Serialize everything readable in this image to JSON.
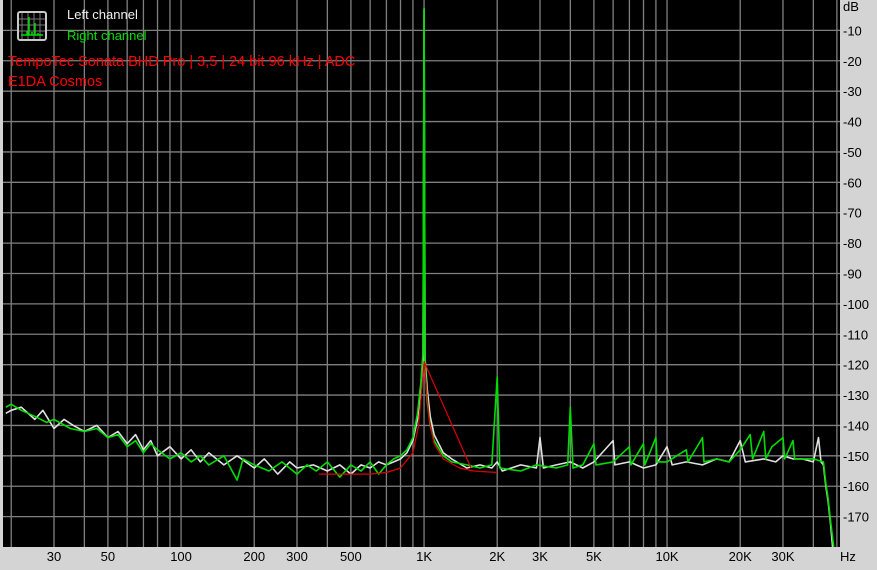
{
  "legend": {
    "left_label": "Left channel",
    "right_label": "Right channel",
    "icon": "spectrum-analyzer-icon"
  },
  "caption": {
    "line1": "TempoTec Sonata BHD Pro | 3,5 | 24 bit 96 kHz | ADC",
    "line2": "E1DA Cosmos"
  },
  "colors": {
    "background": "#000000",
    "grid": "#808080",
    "left": "#e0e0e0",
    "right": "#00dd00",
    "reference": "#dd0000",
    "caption": "#ff0000",
    "panel": "#d4d4d4"
  },
  "chart_data": {
    "type": "line",
    "xscale": "log",
    "xlim": [
      18.5,
      51500
    ],
    "ylim": [
      -180,
      0
    ],
    "xlabel": "Hz",
    "ylabel": "dB",
    "grid": true,
    "x_ticks": [
      {
        "value": 30,
        "label": "30"
      },
      {
        "value": 50,
        "label": "50"
      },
      {
        "value": 100,
        "label": "100"
      },
      {
        "value": 200,
        "label": "200"
      },
      {
        "value": 300,
        "label": "300"
      },
      {
        "value": 500,
        "label": "500"
      },
      {
        "value": 1000,
        "label": "1K"
      },
      {
        "value": 2000,
        "label": "2K"
      },
      {
        "value": 3000,
        "label": "3K"
      },
      {
        "value": 5000,
        "label": "5K"
      },
      {
        "value": 10000,
        "label": "10K"
      },
      {
        "value": 20000,
        "label": "20K"
      },
      {
        "value": 30000,
        "label": "30K"
      }
    ],
    "x_grid": [
      20,
      30,
      40,
      50,
      60,
      70,
      80,
      90,
      100,
      200,
      300,
      400,
      500,
      600,
      700,
      800,
      900,
      1000,
      2000,
      3000,
      4000,
      5000,
      6000,
      7000,
      8000,
      9000,
      10000,
      20000,
      30000,
      40000,
      50000
    ],
    "y_ticks": [
      -10,
      -20,
      -30,
      -40,
      -50,
      -60,
      -70,
      -80,
      -90,
      -100,
      -110,
      -120,
      -130,
      -140,
      -150,
      -160,
      -170
    ],
    "series": [
      {
        "name": "Left channel",
        "color": "#e0e0e0",
        "points": [
          [
            19,
            -136
          ],
          [
            20,
            -135
          ],
          [
            22,
            -134
          ],
          [
            25,
            -138
          ],
          [
            27,
            -135
          ],
          [
            30,
            -141
          ],
          [
            33,
            -138
          ],
          [
            36,
            -140
          ],
          [
            40,
            -142
          ],
          [
            45,
            -140
          ],
          [
            50,
            -144
          ],
          [
            55,
            -142
          ],
          [
            60,
            -146
          ],
          [
            65,
            -143
          ],
          [
            70,
            -148
          ],
          [
            75,
            -145
          ],
          [
            80,
            -150
          ],
          [
            90,
            -147
          ],
          [
            100,
            -151
          ],
          [
            110,
            -148
          ],
          [
            120,
            -152
          ],
          [
            130,
            -149
          ],
          [
            150,
            -153
          ],
          [
            170,
            -150
          ],
          [
            200,
            -154
          ],
          [
            220,
            -151
          ],
          [
            250,
            -156
          ],
          [
            280,
            -152
          ],
          [
            300,
            -154
          ],
          [
            350,
            -153
          ],
          [
            400,
            -155
          ],
          [
            450,
            -153
          ],
          [
            500,
            -156
          ],
          [
            550,
            -153
          ],
          [
            600,
            -154
          ],
          [
            650,
            -152
          ],
          [
            700,
            -153
          ],
          [
            750,
            -152
          ],
          [
            800,
            -151
          ],
          [
            850,
            -149
          ],
          [
            900,
            -145
          ],
          [
            940,
            -138
          ],
          [
            970,
            -128
          ],
          [
            990,
            -118
          ],
          [
            1000,
            -3
          ],
          [
            1010,
            -118
          ],
          [
            1030,
            -128
          ],
          [
            1060,
            -137
          ],
          [
            1100,
            -143
          ],
          [
            1200,
            -149
          ],
          [
            1300,
            -151
          ],
          [
            1500,
            -154
          ],
          [
            1700,
            -153
          ],
          [
            1900,
            -154
          ],
          [
            2000,
            -152
          ],
          [
            2100,
            -155
          ],
          [
            2500,
            -153
          ],
          [
            2900,
            -154
          ],
          [
            3000,
            -144
          ],
          [
            3100,
            -154
          ],
          [
            3500,
            -153
          ],
          [
            4000,
            -152
          ],
          [
            4500,
            -154
          ],
          [
            5000,
            -152
          ],
          [
            6000,
            -145
          ],
          [
            6100,
            -153
          ],
          [
            7000,
            -152
          ],
          [
            8000,
            -154
          ],
          [
            9000,
            -153
          ],
          [
            10000,
            -147
          ],
          [
            10500,
            -153
          ],
          [
            12000,
            -152
          ],
          [
            14000,
            -153
          ],
          [
            16000,
            -151
          ],
          [
            18000,
            -152
          ],
          [
            20000,
            -145
          ],
          [
            21000,
            -152
          ],
          [
            25000,
            -151
          ],
          [
            28000,
            -152
          ],
          [
            30000,
            -150
          ],
          [
            33000,
            -151
          ],
          [
            36000,
            -151
          ],
          [
            40000,
            -152
          ],
          [
            42000,
            -144
          ],
          [
            43000,
            -152
          ],
          [
            44000,
            -153
          ],
          [
            45000,
            -160
          ],
          [
            46000,
            -165
          ],
          [
            47000,
            -172
          ],
          [
            48000,
            -180
          ]
        ]
      },
      {
        "name": "Right channel",
        "color": "#00dd00",
        "points": [
          [
            19,
            -134
          ],
          [
            20,
            -133
          ],
          [
            22,
            -135
          ],
          [
            25,
            -137
          ],
          [
            28,
            -139
          ],
          [
            30,
            -138
          ],
          [
            35,
            -141
          ],
          [
            40,
            -142
          ],
          [
            45,
            -141
          ],
          [
            50,
            -144
          ],
          [
            55,
            -143
          ],
          [
            60,
            -147
          ],
          [
            65,
            -145
          ],
          [
            70,
            -149
          ],
          [
            75,
            -146
          ],
          [
            80,
            -148
          ],
          [
            90,
            -151
          ],
          [
            100,
            -149
          ],
          [
            110,
            -152
          ],
          [
            120,
            -150
          ],
          [
            130,
            -153
          ],
          [
            150,
            -150
          ],
          [
            170,
            -158
          ],
          [
            180,
            -151
          ],
          [
            200,
            -153
          ],
          [
            230,
            -155
          ],
          [
            260,
            -152
          ],
          [
            300,
            -156
          ],
          [
            330,
            -153
          ],
          [
            360,
            -155
          ],
          [
            400,
            -152
          ],
          [
            450,
            -157
          ],
          [
            500,
            -153
          ],
          [
            550,
            -155
          ],
          [
            600,
            -152
          ],
          [
            650,
            -156
          ],
          [
            700,
            -153
          ],
          [
            750,
            -151
          ],
          [
            800,
            -150
          ],
          [
            850,
            -148
          ],
          [
            900,
            -144
          ],
          [
            940,
            -136
          ],
          [
            970,
            -126
          ],
          [
            990,
            -116
          ],
          [
            1000,
            -3
          ],
          [
            1010,
            -120
          ],
          [
            1030,
            -132
          ],
          [
            1060,
            -140
          ],
          [
            1100,
            -145
          ],
          [
            1200,
            -150
          ],
          [
            1300,
            -152
          ],
          [
            1500,
            -153
          ],
          [
            1700,
            -154
          ],
          [
            1900,
            -153
          ],
          [
            2000,
            -124
          ],
          [
            2050,
            -154
          ],
          [
            2500,
            -155
          ],
          [
            2900,
            -153
          ],
          [
            3500,
            -154
          ],
          [
            3900,
            -153
          ],
          [
            4000,
            -134
          ],
          [
            4100,
            -154
          ],
          [
            4500,
            -153
          ],
          [
            5000,
            -146
          ],
          [
            5100,
            -153
          ],
          [
            6000,
            -152
          ],
          [
            7000,
            -147
          ],
          [
            7100,
            -153
          ],
          [
            8000,
            -146
          ],
          [
            8100,
            -153
          ],
          [
            9000,
            -144
          ],
          [
            9100,
            -152
          ],
          [
            10000,
            -152
          ],
          [
            12000,
            -148
          ],
          [
            12200,
            -152
          ],
          [
            14000,
            -144
          ],
          [
            14200,
            -152
          ],
          [
            16000,
            -151
          ],
          [
            18000,
            -152
          ],
          [
            20000,
            -148
          ],
          [
            22000,
            -143
          ],
          [
            22500,
            -151
          ],
          [
            25000,
            -142
          ],
          [
            25500,
            -151
          ],
          [
            27000,
            -147
          ],
          [
            30000,
            -144
          ],
          [
            30500,
            -151
          ],
          [
            33000,
            -145
          ],
          [
            33500,
            -151
          ],
          [
            36000,
            -151
          ],
          [
            40000,
            -151
          ],
          [
            44000,
            -152
          ],
          [
            45000,
            -159
          ],
          [
            46000,
            -164
          ],
          [
            47000,
            -171
          ],
          [
            48500,
            -180
          ]
        ]
      },
      {
        "color": "#dd0000",
        "points": [
          [
            370,
            -156
          ],
          [
            500,
            -156
          ],
          [
            600,
            -156
          ],
          [
            700,
            -155.5
          ],
          [
            800,
            -154
          ],
          [
            900,
            -149
          ],
          [
            950,
            -140
          ],
          [
            1000,
            -119
          ],
          [
            1050,
            -138
          ],
          [
            1100,
            -146
          ],
          [
            1200,
            -151
          ],
          [
            1400,
            -154
          ],
          [
            1600,
            -155
          ],
          [
            2000,
            -155.5
          ]
        ],
        "segment": [
          [
            1000,
            -119
          ],
          [
            1560,
            -154
          ]
        ]
      }
    ]
  }
}
